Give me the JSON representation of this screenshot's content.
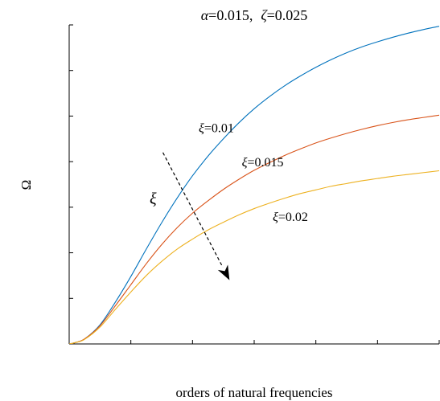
{
  "chart_data": {
    "type": "line",
    "title": {
      "alpha_symbol": "α",
      "alpha_value": "=0.015,",
      "zeta_symbol": "ζ",
      "zeta_value": "=0.025"
    },
    "xlabel": "orders of natural frequencies",
    "ylabel": "Ω",
    "xlim": [
      0,
      6
    ],
    "ylim": [
      0,
      7
    ],
    "x_ticks": [
      0,
      1,
      2,
      3,
      4,
      5,
      6
    ],
    "y_ticks": [
      0,
      1,
      2,
      3,
      4,
      5,
      6,
      7
    ],
    "tick_labels_shown": false,
    "grid": false,
    "series": [
      {
        "label": "ξ=0.01",
        "color": "#0072BD",
        "x": [
          0,
          0.1,
          0.25,
          0.5,
          0.75,
          1.0,
          1.25,
          1.5,
          1.75,
          2.0,
          2.25,
          2.5,
          2.75,
          3.0,
          3.25,
          3.5,
          3.75,
          4.0,
          4.25,
          4.5,
          4.75,
          5.0,
          5.25,
          5.5,
          5.75,
          6.0
        ],
        "y": [
          0,
          0.03,
          0.11,
          0.42,
          0.92,
          1.48,
          2.08,
          2.66,
          3.2,
          3.69,
          4.12,
          4.5,
          4.85,
          5.16,
          5.43,
          5.67,
          5.88,
          6.07,
          6.24,
          6.39,
          6.52,
          6.63,
          6.73,
          6.82,
          6.9,
          6.97
        ]
      },
      {
        "label": "ξ=0.015",
        "color": "#D95319",
        "x": [
          0,
          0.1,
          0.25,
          0.5,
          0.75,
          1.0,
          1.25,
          1.5,
          1.75,
          2.0,
          2.25,
          2.5,
          2.75,
          3.0,
          3.25,
          3.5,
          3.75,
          4.0,
          4.25,
          4.5,
          4.75,
          5.0,
          5.25,
          5.5,
          5.75,
          6.0
        ],
        "y": [
          0,
          0.03,
          0.11,
          0.4,
          0.84,
          1.3,
          1.76,
          2.18,
          2.55,
          2.87,
          3.14,
          3.39,
          3.61,
          3.81,
          3.98,
          4.14,
          4.28,
          4.41,
          4.52,
          4.62,
          4.71,
          4.79,
          4.86,
          4.92,
          4.97,
          5.02
        ]
      },
      {
        "label": "ξ=0.02",
        "color": "#EDB120",
        "x": [
          0,
          0.1,
          0.25,
          0.5,
          0.75,
          1.0,
          1.25,
          1.5,
          1.75,
          2.0,
          2.25,
          2.5,
          2.75,
          3.0,
          3.25,
          3.5,
          3.75,
          4.0,
          4.25,
          4.5,
          4.75,
          5.0,
          5.25,
          5.5,
          5.75,
          6.0
        ],
        "y": [
          0,
          0.03,
          0.1,
          0.37,
          0.76,
          1.14,
          1.5,
          1.81,
          2.08,
          2.3,
          2.5,
          2.67,
          2.83,
          2.97,
          3.09,
          3.2,
          3.3,
          3.38,
          3.46,
          3.52,
          3.58,
          3.63,
          3.68,
          3.72,
          3.76,
          3.8
        ]
      }
    ],
    "annotations": [
      {
        "name": "label-xi-001",
        "symbol": "ξ",
        "text": "=0.01",
        "x": 2.1,
        "y": 4.65
      },
      {
        "name": "label-xi-0015",
        "symbol": "ξ",
        "text": "=0.015",
        "x": 2.8,
        "y": 3.9
      },
      {
        "name": "label-xi-002",
        "symbol": "ξ",
        "text": "=0.02",
        "x": 3.3,
        "y": 2.7
      }
    ],
    "arrow": {
      "label": "ξ",
      "from": [
        1.52,
        4.2
      ],
      "to": [
        2.6,
        1.4
      ],
      "label_at": [
        1.36,
        3.08
      ]
    }
  }
}
